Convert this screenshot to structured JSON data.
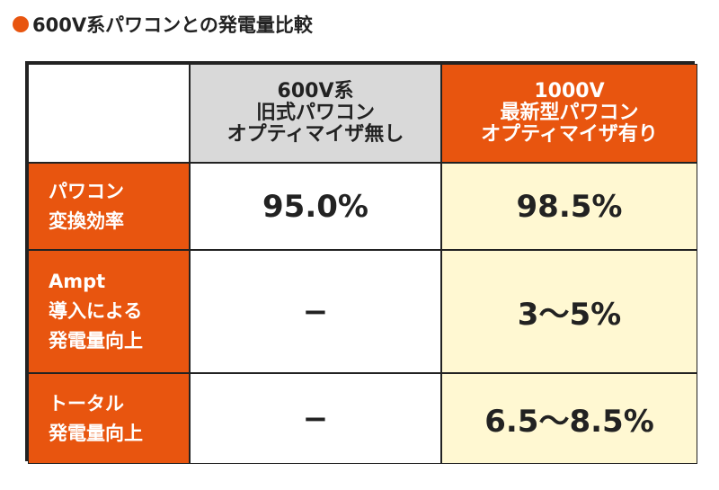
{
  "header": {
    "title": "600V系パワコンとの発電量比較"
  },
  "table": {
    "columns": [
      [
        "600V系",
        "旧式パワコン",
        "オプティマイザ無し"
      ],
      [
        "1000V",
        "最新型パワコン",
        "オプティマイザ有り"
      ]
    ],
    "rows": [
      {
        "label": [
          "パワコン",
          "変換効率"
        ],
        "cells": [
          "95.0%",
          "98.5%"
        ]
      },
      {
        "label": [
          "Ampt",
          "導入による",
          "発電量向上"
        ],
        "cells": [
          "−",
          "3〜5%"
        ]
      },
      {
        "label": [
          "トータル",
          "発電量向上"
        ],
        "cells": [
          "−",
          "6.5〜8.5%"
        ]
      }
    ]
  }
}
